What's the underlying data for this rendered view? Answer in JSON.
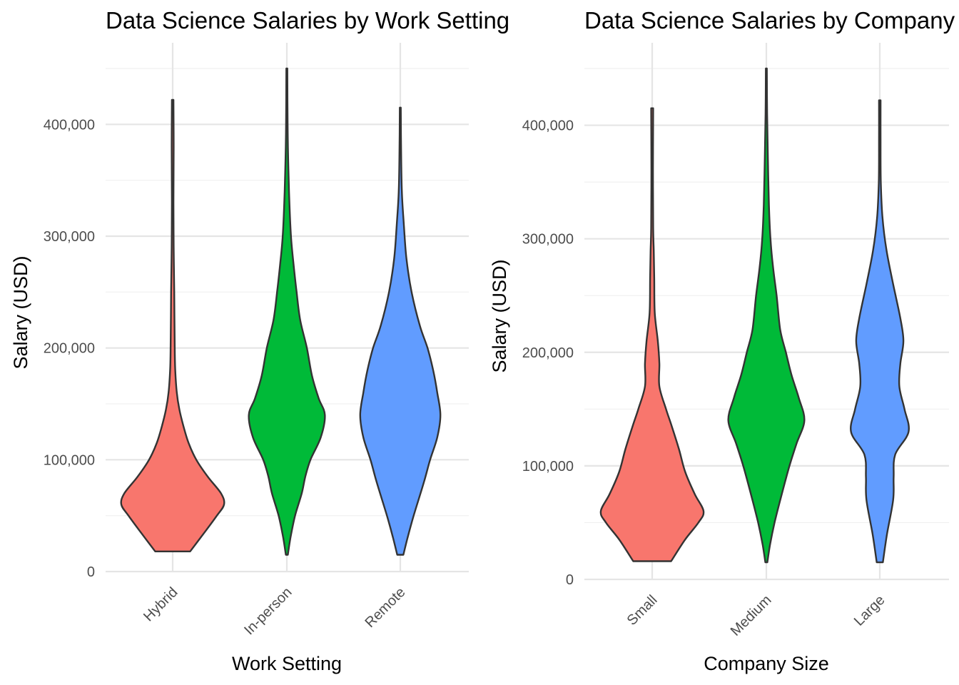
{
  "colors": {
    "series": [
      "#F8766D",
      "#00BA38",
      "#619CFF"
    ],
    "outline": "#333333",
    "grid_major": "#e5e5e5",
    "grid_minor": "#f0f0f0"
  },
  "chart_data": [
    {
      "type": "violin",
      "title": "Data Science Salaries by Work Setting",
      "xlabel": "Work Setting",
      "ylabel": "Salary (USD)",
      "ylim": [
        0,
        450000
      ],
      "yticks": [
        0,
        100000,
        200000,
        300000,
        400000
      ],
      "ytick_labels": [
        "0",
        "100,000",
        "200,000",
        "300,000",
        "400,000"
      ],
      "grid": true,
      "legend": "none",
      "categories": [
        "Hybrid",
        "In-person",
        "Remote"
      ],
      "series": [
        {
          "category": "Hybrid",
          "min": 18000,
          "max": 422000,
          "profile": [
            [
              18000,
              0.34
            ],
            [
              35000,
              0.62
            ],
            [
              50000,
              0.86
            ],
            [
              60000,
              1.0
            ],
            [
              70000,
              0.94
            ],
            [
              85000,
              0.68
            ],
            [
              100000,
              0.46
            ],
            [
              115000,
              0.31
            ],
            [
              130000,
              0.21
            ],
            [
              145000,
              0.13
            ],
            [
              160000,
              0.08
            ],
            [
              180000,
              0.05
            ],
            [
              200000,
              0.04
            ],
            [
              250000,
              0.03
            ],
            [
              290000,
              0.02
            ],
            [
              330000,
              0.015
            ],
            [
              380000,
              0.02
            ],
            [
              422000,
              0.015
            ]
          ]
        },
        {
          "category": "In-person",
          "min": 15000,
          "max": 450000,
          "profile": [
            [
              15000,
              0.02
            ],
            [
              30000,
              0.07
            ],
            [
              50000,
              0.16
            ],
            [
              70000,
              0.29
            ],
            [
              85000,
              0.36
            ],
            [
              100000,
              0.46
            ],
            [
              120000,
              0.66
            ],
            [
              140000,
              0.74
            ],
            [
              155000,
              0.62
            ],
            [
              175000,
              0.49
            ],
            [
              200000,
              0.39
            ],
            [
              225000,
              0.26
            ],
            [
              250000,
              0.19
            ],
            [
              275000,
              0.13
            ],
            [
              300000,
              0.08
            ],
            [
              330000,
              0.05
            ],
            [
              360000,
              0.03
            ],
            [
              400000,
              0.015
            ],
            [
              450000,
              0.01
            ]
          ]
        },
        {
          "category": "Remote",
          "min": 15000,
          "max": 415000,
          "profile": [
            [
              15000,
              0.06
            ],
            [
              30000,
              0.14
            ],
            [
              50000,
              0.26
            ],
            [
              80000,
              0.46
            ],
            [
              100000,
              0.58
            ],
            [
              120000,
              0.72
            ],
            [
              140000,
              0.78
            ],
            [
              160000,
              0.72
            ],
            [
              180000,
              0.64
            ],
            [
              200000,
              0.53
            ],
            [
              220000,
              0.38
            ],
            [
              250000,
              0.22
            ],
            [
              280000,
              0.12
            ],
            [
              310000,
              0.07
            ],
            [
              340000,
              0.03
            ],
            [
              380000,
              0.015
            ],
            [
              415000,
              0.01
            ]
          ]
        }
      ]
    },
    {
      "type": "violin",
      "title": "Data Science Salaries by Company Size",
      "xlabel": "Company Size",
      "ylabel": "Salary (USD)",
      "ylim": [
        0,
        450000
      ],
      "yticks": [
        0,
        100000,
        200000,
        300000,
        400000
      ],
      "ytick_labels": [
        "0",
        "100,000",
        "200,000",
        "300,000",
        "400,000"
      ],
      "grid": true,
      "legend": "none",
      "categories": [
        "Small",
        "Medium",
        "Large"
      ],
      "series": [
        {
          "category": "Small",
          "min": 16000,
          "max": 415000,
          "profile": [
            [
              16000,
              0.37
            ],
            [
              35000,
              0.64
            ],
            [
              50000,
              0.9
            ],
            [
              60000,
              1.0
            ],
            [
              75000,
              0.83
            ],
            [
              95000,
              0.64
            ],
            [
              115000,
              0.52
            ],
            [
              135000,
              0.38
            ],
            [
              150000,
              0.27
            ],
            [
              170000,
              0.14
            ],
            [
              190000,
              0.14
            ],
            [
              210000,
              0.11
            ],
            [
              235000,
              0.05
            ],
            [
              265000,
              0.04
            ],
            [
              290000,
              0.03
            ],
            [
              310000,
              0.02
            ],
            [
              360000,
              0.015
            ],
            [
              415000,
              0.02
            ]
          ]
        },
        {
          "category": "Medium",
          "min": 15000,
          "max": 450000,
          "profile": [
            [
              15000,
              0.02
            ],
            [
              30000,
              0.07
            ],
            [
              50000,
              0.16
            ],
            [
              75000,
              0.3
            ],
            [
              100000,
              0.45
            ],
            [
              120000,
              0.59
            ],
            [
              140000,
              0.74
            ],
            [
              160000,
              0.63
            ],
            [
              180000,
              0.49
            ],
            [
              200000,
              0.38
            ],
            [
              220000,
              0.27
            ],
            [
              250000,
              0.2
            ],
            [
              275000,
              0.13
            ],
            [
              300000,
              0.08
            ],
            [
              330000,
              0.05
            ],
            [
              370000,
              0.03
            ],
            [
              410000,
              0.015
            ],
            [
              450000,
              0.01
            ]
          ]
        },
        {
          "category": "Large",
          "min": 15000,
          "max": 422000,
          "profile": [
            [
              15000,
              0.06
            ],
            [
              40000,
              0.14
            ],
            [
              70000,
              0.26
            ],
            [
              90000,
              0.27
            ],
            [
              110000,
              0.3
            ],
            [
              130000,
              0.56
            ],
            [
              150000,
              0.48
            ],
            [
              170000,
              0.38
            ],
            [
              190000,
              0.4
            ],
            [
              210000,
              0.46
            ],
            [
              230000,
              0.4
            ],
            [
              260000,
              0.26
            ],
            [
              290000,
              0.13
            ],
            [
              320000,
              0.05
            ],
            [
              350000,
              0.02
            ],
            [
              385000,
              0.015
            ],
            [
              422000,
              0.015
            ]
          ]
        }
      ]
    }
  ]
}
